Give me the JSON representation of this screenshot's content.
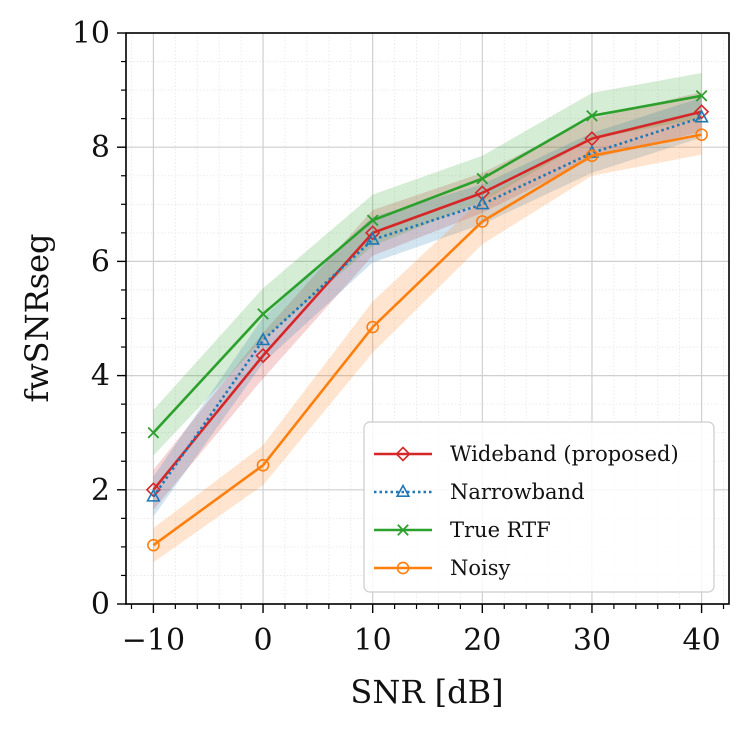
{
  "chart_data": {
    "type": "line",
    "title": "",
    "xlabel": "SNR [dB]",
    "ylabel": "fwSNRseg",
    "x": [
      -10,
      0,
      10,
      20,
      30,
      40
    ],
    "xlim": [
      -12.5,
      42.5
    ],
    "ylim": [
      0,
      10
    ],
    "xticks": [
      -10,
      0,
      10,
      20,
      30,
      40
    ],
    "xtick_labels": [
      "−10",
      "0",
      "10",
      "20",
      "30",
      "40"
    ],
    "yticks": [
      0,
      2,
      4,
      6,
      8,
      10
    ],
    "ytick_labels": [
      "0",
      "2",
      "4",
      "6",
      "8",
      "10"
    ],
    "grid": true,
    "legend_position": "lower-right",
    "series": [
      {
        "name": "Wideband (proposed)",
        "color": "#d62728",
        "marker": "diamond",
        "linestyle": "solid",
        "values": [
          2.0,
          4.35,
          6.5,
          7.2,
          8.15,
          8.62
        ],
        "band": [
          0.35,
          0.4,
          0.4,
          0.35,
          0.35,
          0.35
        ]
      },
      {
        "name": "Narrowband",
        "color": "#1f77b4",
        "marker": "triangle",
        "linestyle": "dotted",
        "values": [
          1.88,
          4.62,
          6.38,
          7.0,
          7.9,
          8.52
        ],
        "band": [
          0.35,
          0.4,
          0.4,
          0.35,
          0.35,
          0.35
        ]
      },
      {
        "name": "True RTF",
        "color": "#2ca02c",
        "marker": "x",
        "linestyle": "solid",
        "values": [
          3.0,
          5.08,
          6.72,
          7.45,
          8.55,
          8.9
        ],
        "band": [
          0.4,
          0.45,
          0.45,
          0.4,
          0.4,
          0.4
        ]
      },
      {
        "name": "Noisy",
        "color": "#ff7f0e",
        "marker": "circle",
        "linestyle": "solid",
        "values": [
          1.03,
          2.43,
          4.85,
          6.7,
          7.85,
          8.22
        ],
        "band": [
          0.3,
          0.35,
          0.45,
          0.4,
          0.35,
          0.35
        ]
      }
    ]
  }
}
